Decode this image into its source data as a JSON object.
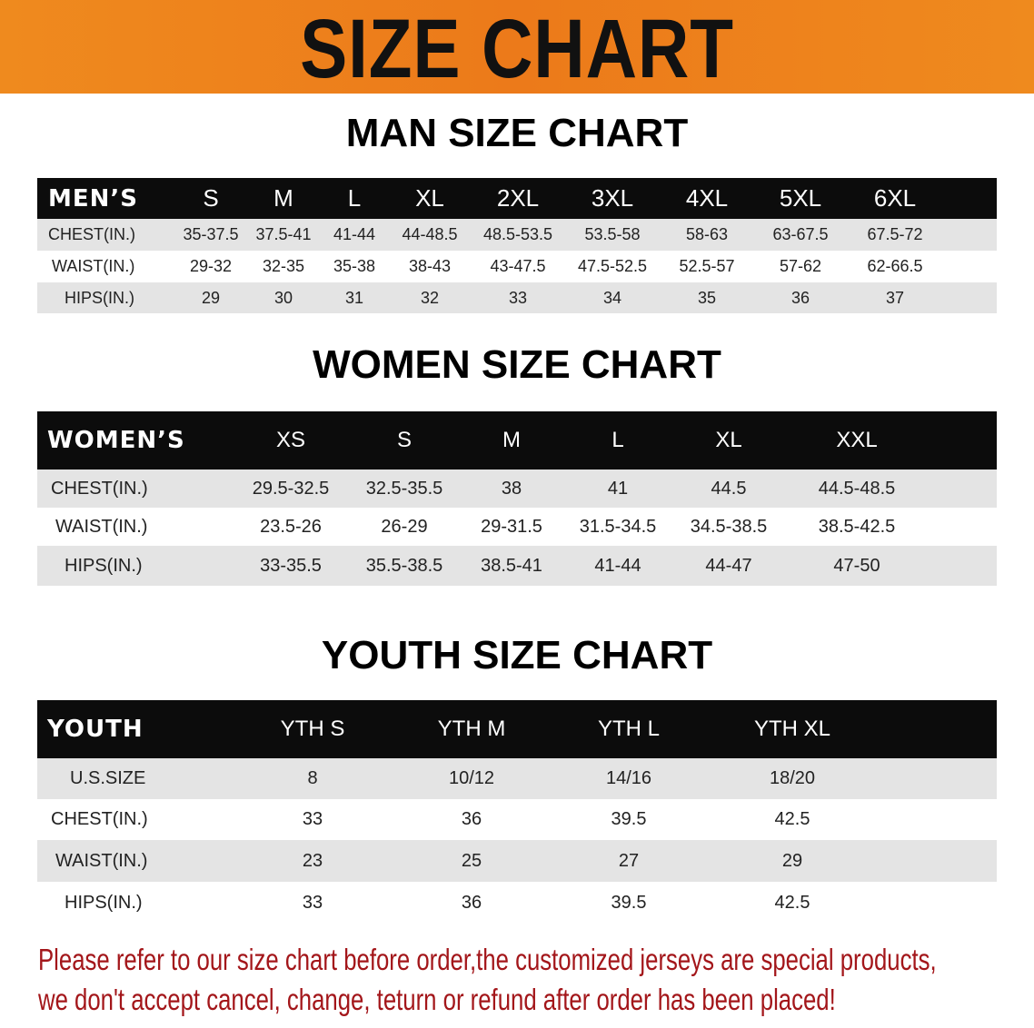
{
  "banner": {
    "title": "SIZE CHART",
    "color": "#ec7a1a"
  },
  "men": {
    "title": "MAN SIZE CHART",
    "header": [
      "MEN’S",
      "S",
      "M",
      "L",
      "XL",
      "2XL",
      "3XL",
      "4XL",
      "5XL",
      "6XL"
    ],
    "rows": [
      [
        "CHEST(IN.)",
        "35-37.5",
        "37.5-41",
        "41-44",
        "44-48.5",
        "48.5-53.5",
        "53.5-58",
        "58-63",
        "63-67.5",
        "67.5-72"
      ],
      [
        "WAIST(IN.)",
        "29-32",
        "32-35",
        "35-38",
        "38-43",
        "43-47.5",
        "47.5-52.5",
        "52.5-57",
        "57-62",
        "62-66.5"
      ],
      [
        "HIPS(IN.)",
        "29",
        "30",
        "31",
        "32",
        "33",
        "34",
        "35",
        "36",
        "37"
      ]
    ]
  },
  "women": {
    "title": "WOMEN SIZE CHART",
    "header": [
      "WOMEN’S",
      "XS",
      "S",
      "M",
      "L",
      "XL",
      "XXL"
    ],
    "rows": [
      [
        "CHEST(IN.)",
        "29.5-32.5",
        "32.5-35.5",
        "38",
        "41",
        "44.5",
        "44.5-48.5"
      ],
      [
        "WAIST(IN.)",
        "23.5-26",
        "26-29",
        "29-31.5",
        "31.5-34.5",
        "34.5-38.5",
        "38.5-42.5"
      ],
      [
        "HIPS(IN.)",
        "33-35.5",
        "35.5-38.5",
        "38.5-41",
        "41-44",
        "44-47",
        "47-50"
      ]
    ]
  },
  "youth": {
    "title": "YOUTH SIZE CHART",
    "header": [
      "YOUTH",
      "YTH S",
      "YTH M",
      "YTH L",
      "YTH XL"
    ],
    "rows": [
      [
        "U.S.SIZE",
        "8",
        "10/12",
        "14/16",
        "18/20"
      ],
      [
        "CHEST(IN.)",
        "33",
        "36",
        "39.5",
        "42.5"
      ],
      [
        "WAIST(IN.)",
        "23",
        "25",
        "27",
        "29"
      ],
      [
        "HIPS(IN.)",
        "33",
        "36",
        "39.5",
        "42.5"
      ]
    ]
  },
  "notice": {
    "line1": "Please refer to our size chart before order,the customized jerseys are special products,",
    "line2": "we don't accept cancel, change, teturn or refund after order has been placed!",
    "color": "#a3161a"
  }
}
